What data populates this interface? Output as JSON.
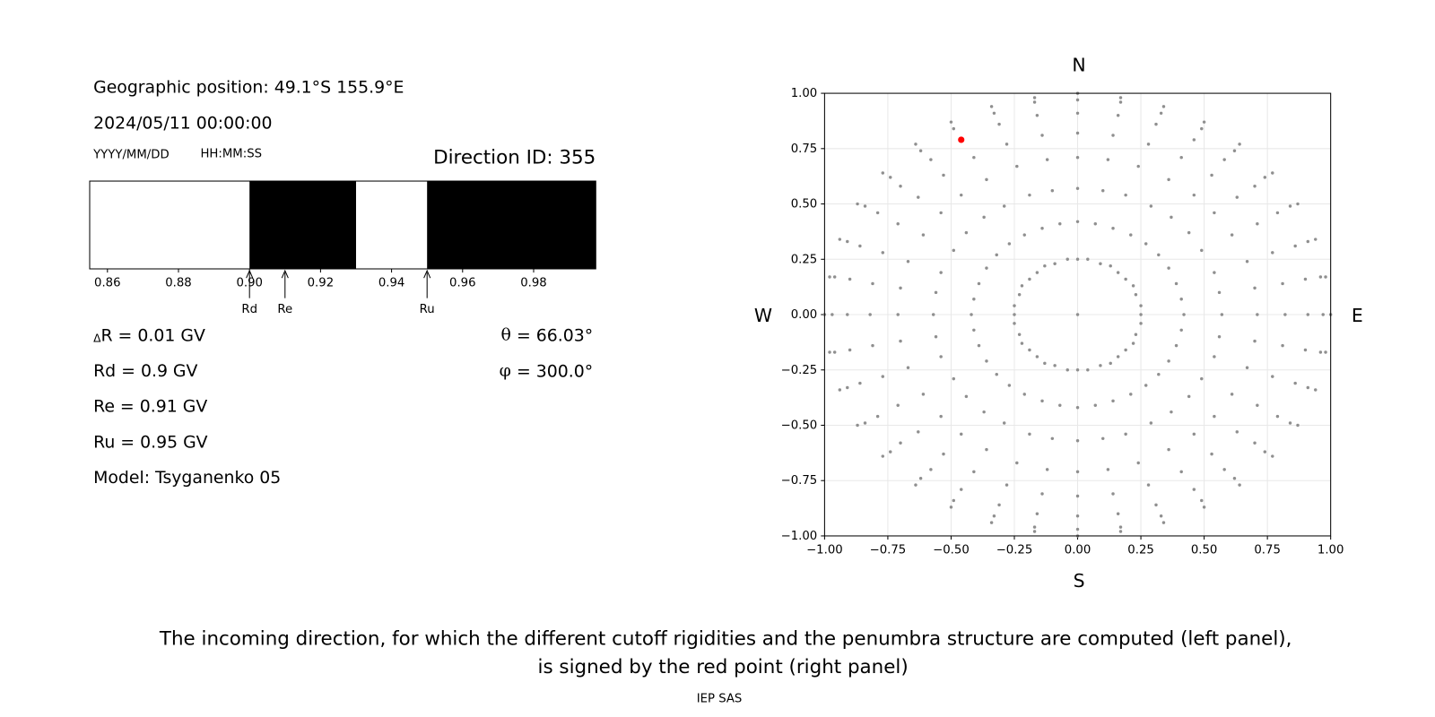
{
  "info": {
    "position": "Geographic position: 49.1°S 155.9°E",
    "datetime": "2024/05/11 00:00:00",
    "date_format": "YYYY/MM/DD",
    "time_format": "HH:MM:SS",
    "direction_id": "Direction ID: 355",
    "delta": {
      "symbol": "Δ",
      "text": "R = 0.01 GV"
    },
    "params": [
      "Rd = 0.9 GV",
      "Re = 0.91 GV",
      "Ru = 0.95 GV",
      "Model: Tsyganenko 05"
    ],
    "angles": [
      {
        "symbol": "θ",
        "text": "= 66.03°"
      },
      {
        "symbol": "φ",
        "text": "= 300.0°"
      }
    ]
  },
  "chart_data": [
    {
      "type": "penumbra",
      "xlim": [
        0.855,
        0.9975
      ],
      "xticks": [
        0.86,
        0.88,
        {
          "value": 0.9,
          "label": "0.90"
        },
        0.92,
        0.94,
        0.96,
        0.98
      ],
      "bands": [
        {
          "from": 0.855,
          "to": 0.9,
          "color": "#ffffff"
        },
        {
          "from": 0.9,
          "to": 0.93,
          "color": "#000000"
        },
        {
          "from": 0.93,
          "to": 0.95,
          "color": "#ffffff"
        },
        {
          "from": 0.95,
          "to": 0.9975,
          "color": "#000000"
        }
      ],
      "annotations": [
        {
          "text": "Rd",
          "x": 0.9
        },
        {
          "text": "Re",
          "x": 0.91
        },
        {
          "text": "Ru",
          "x": 0.95
        }
      ]
    },
    {
      "type": "scatter",
      "compass": {
        "north": "N",
        "south": "S",
        "east": "E",
        "west": "W"
      },
      "xlim": [
        -1,
        1
      ],
      "ylim": [
        -1,
        1
      ],
      "xticks": [
        {
          "value": -1,
          "label": "−1.00"
        },
        {
          "value": -0.75,
          "label": "−0.75"
        },
        {
          "value": -0.5,
          "label": "−0.50"
        },
        {
          "value": -0.25,
          "label": "−0.25"
        },
        {
          "value": 0,
          "label": "0.00"
        },
        0.25,
        {
          "value": 0.5,
          "label": "0.50"
        },
        0.75,
        {
          "value": 1,
          "label": "1.00"
        }
      ],
      "yticks": [
        {
          "value": -1,
          "label": "−1.00"
        },
        {
          "value": -0.75,
          "label": "−0.75"
        },
        {
          "value": -0.5,
          "label": "−0.50"
        },
        {
          "value": -0.25,
          "label": "−0.25"
        },
        {
          "value": 0,
          "label": "0.00"
        },
        0.25,
        {
          "value": 0.5,
          "label": "0.50"
        },
        0.75,
        {
          "value": 1,
          "label": "1.00"
        }
      ],
      "grid": true,
      "series": [
        {
          "color": "#8f8f8f",
          "x": [
            0,
            0,
            0.04,
            0.09,
            0.13,
            0.16,
            0.19,
            0.22,
            0.23,
            0.25,
            0.25,
            0.25,
            0.23,
            0.22,
            0.19,
            0.16,
            0.13,
            0.09,
            0.04,
            0,
            -0.04,
            -0.09,
            -0.13,
            -0.16,
            -0.19,
            -0.22,
            -0.23,
            -0.25,
            -0.25,
            -0.25,
            -0.23,
            -0.22,
            -0.19,
            -0.16,
            -0.13,
            -0.09,
            -0.04,
            0,
            0.07,
            0.14,
            0.21,
            0.27,
            0.32,
            0.36,
            0.39,
            0.41,
            0.42,
            0.41,
            0.39,
            0.36,
            0.32,
            0.27,
            0.21,
            0.14,
            0.07,
            0,
            -0.07,
            -0.14,
            -0.21,
            -0.27,
            -0.32,
            -0.36,
            -0.39,
            -0.41,
            -0.42,
            -0.41,
            -0.39,
            -0.36,
            -0.32,
            -0.27,
            -0.21,
            -0.14,
            -0.07,
            0,
            0.1,
            0.19,
            0.29,
            0.37,
            0.44,
            0.49,
            0.54,
            0.56,
            0.57,
            0.56,
            0.54,
            0.49,
            0.44,
            0.37,
            0.29,
            0.19,
            0.1,
            0,
            -0.1,
            -0.19,
            -0.29,
            -0.37,
            -0.44,
            -0.49,
            -0.54,
            -0.56,
            -0.57,
            -0.56,
            -0.54,
            -0.49,
            -0.44,
            -0.37,
            -0.29,
            -0.19,
            -0.1,
            0,
            0.12,
            0.24,
            0.36,
            0.46,
            0.54,
            0.61,
            0.67,
            0.7,
            0.71,
            0.7,
            0.67,
            0.61,
            0.54,
            0.46,
            0.36,
            0.24,
            0.12,
            0,
            -0.12,
            -0.24,
            -0.36,
            -0.46,
            -0.54,
            -0.61,
            -0.67,
            -0.7,
            -0.71,
            -0.7,
            -0.67,
            -0.61,
            -0.54,
            -0.46,
            -0.36,
            -0.24,
            -0.12,
            0,
            0.14,
            0.28,
            0.41,
            0.53,
            0.63,
            0.71,
            0.77,
            0.81,
            0.82,
            0.81,
            0.77,
            0.71,
            0.63,
            0.53,
            0.41,
            0.28,
            0.14,
            0,
            -0.14,
            -0.28,
            -0.41,
            -0.53,
            -0.63,
            -0.71,
            -0.77,
            -0.81,
            -0.82,
            -0.81,
            -0.77,
            -0.71,
            -0.63,
            -0.53,
            -0.41,
            -0.28,
            -0.14,
            0,
            0.16,
            0.31,
            0.46,
            0.58,
            0.7,
            0.79,
            0.86,
            0.9,
            0.91,
            0.9,
            0.86,
            0.79,
            0.7,
            0.58,
            0.46,
            0.31,
            0.16,
            0,
            -0.16,
            -0.31,
            -0.46,
            -0.58,
            -0.7,
            -0.79,
            -0.86,
            -0.9,
            -0.91,
            -0.9,
            -0.86,
            -0.79,
            -0.7,
            -0.58,
            -0.46,
            -0.31,
            -0.16,
            0,
            0.17,
            0.33,
            0.49,
            0.62,
            0.74,
            0.84,
            0.91,
            0.96,
            0.97,
            0.96,
            0.91,
            0.84,
            0.74,
            0.62,
            0.49,
            0.33,
            0.17,
            0,
            -0.17,
            -0.33,
            -0.49,
            -0.62,
            -0.74,
            -0.84,
            -0.91,
            -0.96,
            -0.97,
            -0.96,
            -0.91,
            -0.84,
            -0.74,
            -0.62,
            -0.49,
            -0.33,
            -0.17,
            0,
            0.17,
            0.34,
            0.5,
            0.64,
            0.77,
            0.87,
            0.94,
            0.98,
            1,
            0.98,
            0.94,
            0.87,
            0.77,
            0.64,
            0.5,
            0.34,
            0.17,
            0,
            -0.17,
            -0.34,
            -0.5,
            -0.64,
            -0.77,
            -0.87,
            -0.94,
            -0.98,
            -1,
            -0.98,
            -0.94,
            -0.87,
            -0.77,
            -0.64,
            -0.5,
            -0.34,
            -0.17
          ],
          "y": [
            0,
            0.25,
            0.25,
            0.23,
            0.22,
            0.19,
            0.16,
            0.13,
            0.09,
            0.04,
            0,
            -0.04,
            -0.09,
            -0.13,
            -0.16,
            -0.19,
            -0.22,
            -0.23,
            -0.25,
            -0.25,
            -0.25,
            -0.23,
            -0.22,
            -0.19,
            -0.16,
            -0.13,
            -0.09,
            -0.04,
            0,
            0.04,
            0.09,
            0.13,
            0.16,
            0.19,
            0.22,
            0.23,
            0.25,
            0.42,
            0.41,
            0.39,
            0.36,
            0.32,
            0.27,
            0.21,
            0.14,
            0.07,
            0,
            -0.07,
            -0.14,
            -0.21,
            -0.27,
            -0.32,
            -0.36,
            -0.39,
            -0.41,
            -0.42,
            -0.41,
            -0.39,
            -0.36,
            -0.32,
            -0.27,
            -0.21,
            -0.14,
            -0.07,
            0,
            0.07,
            0.14,
            0.21,
            0.27,
            0.32,
            0.36,
            0.39,
            0.41,
            0.57,
            0.56,
            0.54,
            0.49,
            0.44,
            0.37,
            0.29,
            0.19,
            0.1,
            0,
            -0.1,
            -0.19,
            -0.29,
            -0.37,
            -0.44,
            -0.49,
            -0.54,
            -0.56,
            -0.57,
            -0.56,
            -0.54,
            -0.49,
            -0.44,
            -0.37,
            -0.29,
            -0.19,
            -0.1,
            0,
            0.1,
            0.19,
            0.29,
            0.37,
            0.44,
            0.49,
            0.54,
            0.56,
            0.71,
            0.7,
            0.67,
            0.61,
            0.54,
            0.46,
            0.36,
            0.24,
            0.12,
            0,
            -0.12,
            -0.24,
            -0.36,
            -0.46,
            -0.54,
            -0.61,
            -0.67,
            -0.7,
            -0.71,
            -0.7,
            -0.67,
            -0.61,
            -0.54,
            -0.46,
            -0.36,
            -0.24,
            -0.12,
            0,
            0.12,
            0.24,
            0.36,
            0.46,
            0.54,
            0.61,
            0.67,
            0.7,
            0.82,
            0.81,
            0.77,
            0.71,
            0.63,
            0.53,
            0.41,
            0.28,
            0.14,
            0,
            -0.14,
            -0.28,
            -0.41,
            -0.53,
            -0.63,
            -0.71,
            -0.77,
            -0.81,
            -0.82,
            -0.81,
            -0.77,
            -0.71,
            -0.63,
            -0.53,
            -0.41,
            -0.28,
            -0.14,
            0,
            0.14,
            0.28,
            0.41,
            0.53,
            0.63,
            0.71,
            0.77,
            0.81,
            0.91,
            0.9,
            0.86,
            0.79,
            0.7,
            0.58,
            0.46,
            0.31,
            0.16,
            0,
            -0.16,
            -0.31,
            -0.46,
            -0.58,
            -0.7,
            -0.79,
            -0.86,
            -0.9,
            -0.91,
            -0.9,
            -0.86,
            -0.79,
            -0.7,
            -0.58,
            -0.46,
            -0.31,
            -0.16,
            0,
            0.16,
            0.31,
            0.46,
            0.58,
            0.7,
            0.79,
            0.86,
            0.9,
            0.97,
            0.96,
            0.91,
            0.84,
            0.74,
            0.62,
            0.49,
            0.33,
            0.17,
            0,
            -0.17,
            -0.33,
            -0.49,
            -0.62,
            -0.74,
            -0.84,
            -0.91,
            -0.96,
            -0.97,
            -0.96,
            -0.91,
            -0.84,
            -0.74,
            -0.62,
            -0.49,
            -0.33,
            -0.17,
            0,
            0.17,
            0.33,
            0.49,
            0.62,
            0.74,
            0.84,
            0.91,
            0.96,
            1,
            0.98,
            0.94,
            0.87,
            0.77,
            0.64,
            0.5,
            0.34,
            0.17,
            0,
            -0.17,
            -0.34,
            -0.5,
            -0.64,
            -0.77,
            -0.87,
            -0.94,
            -0.98,
            -1,
            -0.98,
            -0.94,
            -0.87,
            -0.77,
            -0.64,
            -0.5,
            -0.34,
            -0.17,
            0,
            0.17,
            0.34,
            0.5,
            0.64,
            0.77,
            0.87,
            0.94,
            0.98
          ]
        },
        {
          "color": "#ff0000",
          "x": [
            -0.46
          ],
          "y": [
            0.79
          ]
        }
      ]
    }
  ],
  "caption": [
    "The incoming direction, for which the different cutoff rigidities and the penumbra structure are computed (left panel),",
    "is signed by the red point (right panel)"
  ],
  "footer": "IEP SAS"
}
